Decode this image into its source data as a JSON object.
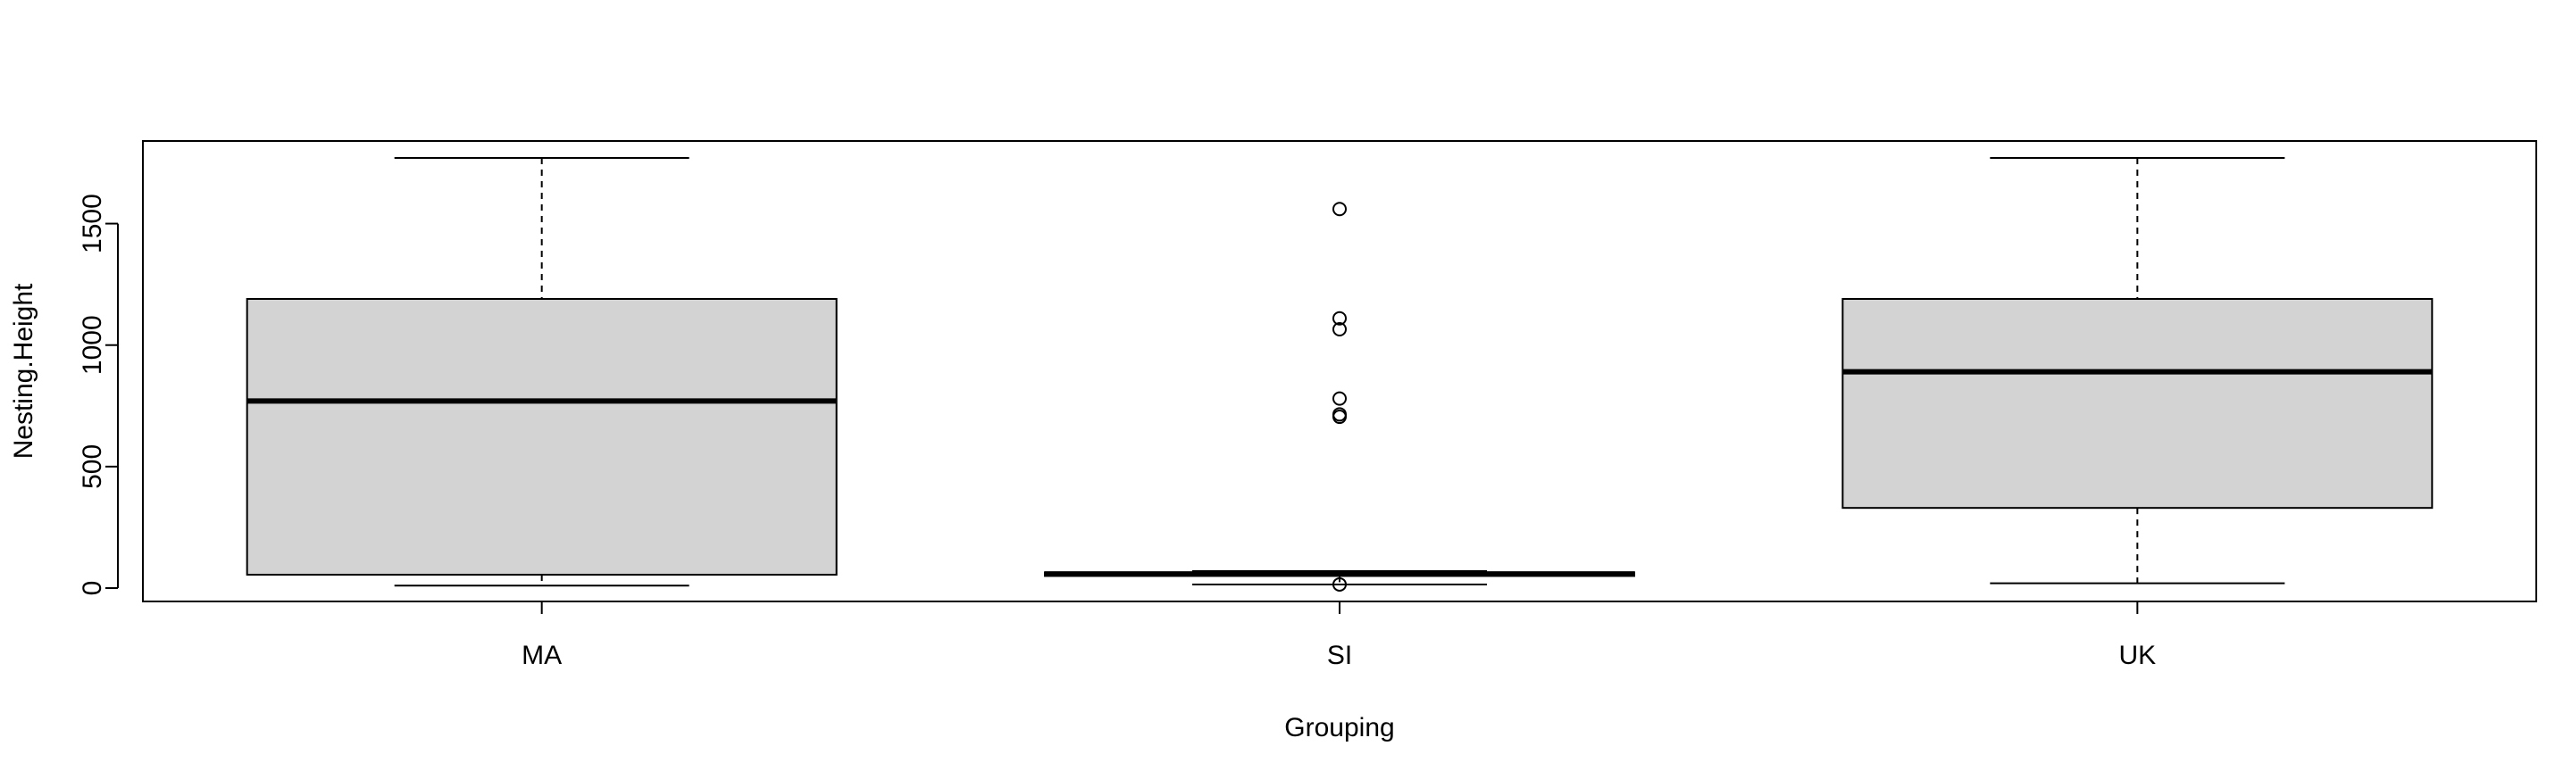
{
  "chart_data": {
    "type": "boxplot",
    "title": "",
    "xlabel": "Grouping",
    "ylabel": "Nesting.Height",
    "ylim": [
      -55,
      1840
    ],
    "yticks": [
      0,
      500,
      1000,
      1500
    ],
    "grid": false,
    "legend": "none",
    "colors": {
      "box_fill": "#d3d3d3",
      "stroke": "#000000",
      "background": "#ffffff"
    },
    "categories": [
      "MA",
      "SI",
      "UK"
    ],
    "boxes": [
      {
        "name": "MA",
        "whisker_low": 10,
        "q1": 55,
        "median": 770,
        "q3": 1190,
        "whisker_high": 1770,
        "outliers": []
      },
      {
        "name": "SI",
        "whisker_low": 15,
        "q1": 50,
        "median": 58,
        "q3": 65,
        "whisker_high": 70,
        "outliers": [
          1560,
          1110,
          1065,
          780,
          715,
          705,
          15
        ]
      },
      {
        "name": "UK",
        "whisker_low": 20,
        "q1": 330,
        "median": 890,
        "q3": 1190,
        "whisker_high": 1770,
        "outliers": []
      }
    ]
  }
}
